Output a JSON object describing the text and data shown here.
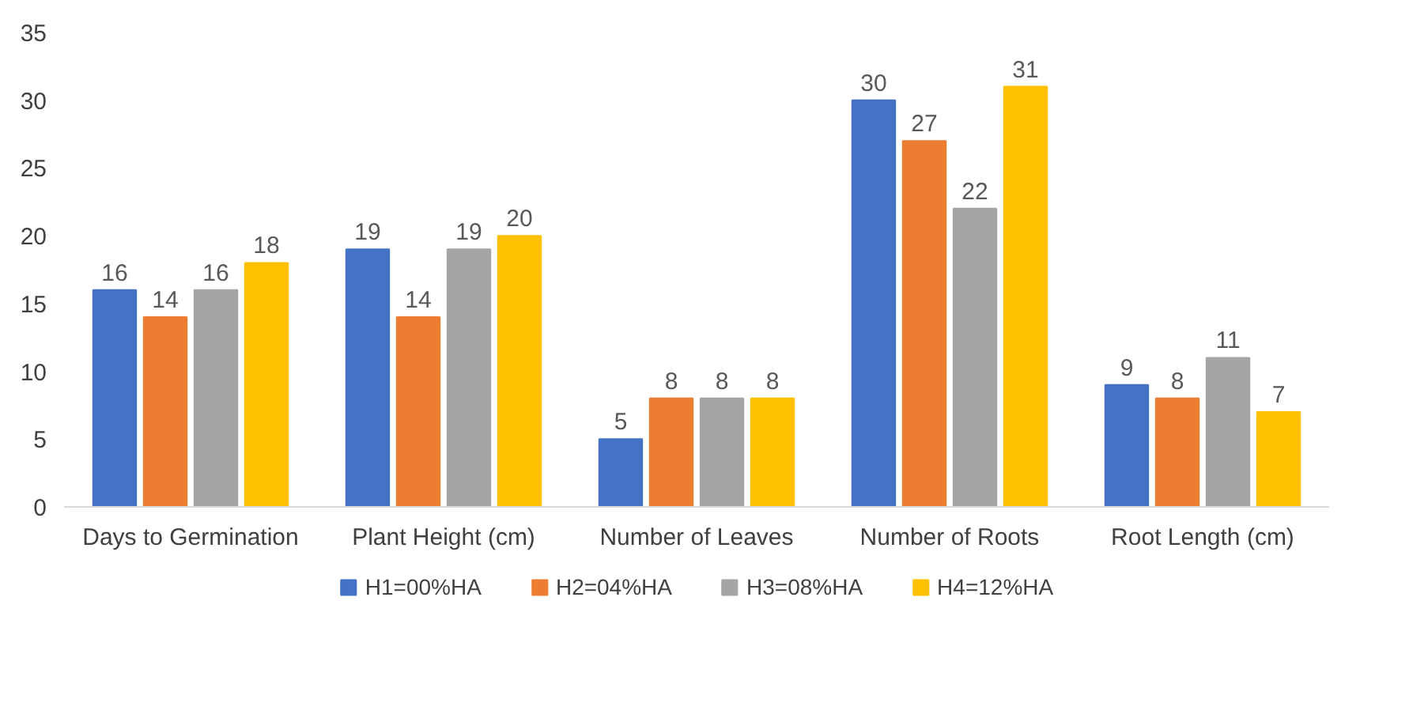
{
  "chart_data": {
    "type": "bar",
    "categories": [
      "Days to Germination",
      "Plant Height (cm)",
      "Number of Leaves",
      "Number of Roots",
      "Root Length (cm)"
    ],
    "series": [
      {
        "name": "H1=00%HA",
        "color": "#4472c4",
        "values": [
          16,
          19,
          5,
          30,
          9
        ]
      },
      {
        "name": "H2=04%HA",
        "color": "#ed7d31",
        "values": [
          14,
          14,
          8,
          27,
          8
        ]
      },
      {
        "name": "H3=08%HA",
        "color": "#a5a5a5",
        "values": [
          16,
          19,
          8,
          22,
          11
        ]
      },
      {
        "name": "H4=12%HA",
        "color": "#ffc000",
        "values": [
          18,
          20,
          8,
          31,
          7
        ]
      }
    ],
    "ylim": [
      0,
      35
    ],
    "yticks": [
      0,
      5,
      10,
      15,
      20,
      25,
      30,
      35
    ],
    "grid": false,
    "data_labels": true,
    "legend": "bottom"
  }
}
